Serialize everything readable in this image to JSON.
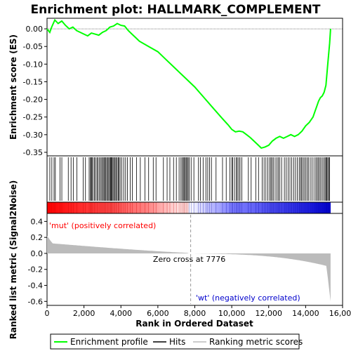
{
  "chart_data": {
    "type": "line",
    "title": "Enrichment plot: HALLMARK_COMPLEMENT",
    "xlabel": "Rank in Ordered Dataset",
    "ylabel_top": "Enrichment score (ES)",
    "ylabel_bottom": "Ranked list metric (Signal2Noise)",
    "xlim": [
      0,
      16000
    ],
    "x_ticks": [
      0,
      2000,
      4000,
      6000,
      8000,
      10000,
      12000,
      14000,
      16000
    ],
    "x_tick_labels": [
      "0",
      "2,000",
      "4,000",
      "6,000",
      "8,000",
      "10,000",
      "12,000",
      "14,000",
      "16,000"
    ],
    "es_ylim": [
      -0.36,
      0.03
    ],
    "es_ticks": [
      0.0,
      -0.05,
      -0.1,
      -0.15,
      -0.2,
      -0.25,
      -0.3,
      -0.35
    ],
    "es_tick_labels": [
      "0.00",
      "-0.05",
      "-0.10",
      "-0.15",
      "-0.20",
      "-0.25",
      "-0.30",
      "-0.35"
    ],
    "metric_ylim": [
      -0.65,
      0.5
    ],
    "metric_ticks": [
      0.4,
      0.2,
      0.0,
      -0.2,
      -0.4,
      -0.6
    ],
    "metric_tick_labels": [
      "0.4",
      "0.2",
      "0.0",
      "-0.2",
      "-0.4",
      "-0.6"
    ],
    "n_genes": 15350,
    "zero_cross": 7776,
    "zero_cross_label": "Zero cross at 7776",
    "pos_label": "'mut' (positively correlated)",
    "neg_label": "'wt' (negatively correlated)",
    "series": [
      {
        "name": "Enrichment profile",
        "color": "#00ff00",
        "x": [
          0,
          150,
          250,
          420,
          600,
          800,
          1000,
          1200,
          1400,
          1600,
          1800,
          2000,
          2200,
          2400,
          2600,
          2800,
          3000,
          3200,
          3400,
          3600,
          3800,
          4000,
          4200,
          4400,
          4600,
          4800,
          5000,
          5500,
          6000,
          6500,
          7000,
          7500,
          8000,
          8500,
          9000,
          9500,
          9800,
          10000,
          10200,
          10400,
          10600,
          10800,
          11000,
          11200,
          11400,
          11600,
          11800,
          12000,
          12200,
          12400,
          12600,
          12800,
          13000,
          13200,
          13400,
          13600,
          13800,
          14000,
          14200,
          14400,
          14500,
          14600,
          14700,
          14800,
          14900,
          15000,
          15100,
          15200,
          15300,
          15350
        ],
        "y": [
          0.0,
          -0.01,
          0.005,
          0.025,
          0.015,
          0.022,
          0.01,
          0.0,
          0.005,
          -0.005,
          -0.01,
          -0.015,
          -0.02,
          -0.012,
          -0.015,
          -0.018,
          -0.01,
          -0.005,
          0.005,
          0.008,
          0.015,
          0.01,
          0.008,
          -0.005,
          -0.015,
          -0.025,
          -0.035,
          -0.05,
          -0.065,
          -0.09,
          -0.115,
          -0.14,
          -0.165,
          -0.195,
          -0.225,
          -0.255,
          -0.272,
          -0.285,
          -0.292,
          -0.29,
          -0.292,
          -0.3,
          -0.308,
          -0.318,
          -0.328,
          -0.338,
          -0.335,
          -0.33,
          -0.318,
          -0.31,
          -0.305,
          -0.31,
          -0.305,
          -0.3,
          -0.305,
          -0.3,
          -0.29,
          -0.275,
          -0.265,
          -0.25,
          -0.235,
          -0.22,
          -0.205,
          -0.195,
          -0.19,
          -0.18,
          -0.16,
          -0.1,
          -0.04,
          0.0
        ]
      }
    ],
    "legend": [
      {
        "label": "Enrichment profile",
        "color": "#00ff00"
      },
      {
        "label": "Hits",
        "color": "#000000"
      },
      {
        "label": "Ranking metric scores",
        "color": "#bbbbbb"
      }
    ],
    "hit_positions": [
      150,
      260,
      380,
      450,
      700,
      800,
      1150,
      1300,
      1420,
      1620,
      1960,
      2080,
      2280,
      2350,
      2390,
      2430,
      2480,
      2560,
      2620,
      2700,
      2760,
      2830,
      2900,
      2960,
      3020,
      3080,
      3120,
      3180,
      3230,
      3290,
      3340,
      3390,
      3440,
      3480,
      3520,
      3570,
      3620,
      3680,
      3730,
      3790,
      3850,
      3900,
      3960,
      4050,
      4150,
      4250,
      4350,
      4500,
      4620,
      4850,
      5050,
      5300,
      5500,
      5750,
      5900,
      6300,
      6500,
      6650,
      6850,
      7000,
      7150,
      7250,
      7320,
      7380,
      7420,
      7480,
      7530,
      7580,
      7640,
      7700,
      7800,
      7950,
      8200,
      8300,
      8450,
      8600,
      8700,
      8800,
      8900,
      9150,
      9500,
      9700,
      9900,
      10000,
      10050,
      10150,
      10250,
      10300,
      10380,
      10450,
      10550,
      10900,
      11050,
      11300,
      11450,
      11650,
      11750,
      11850,
      11950,
      12050,
      12120,
      12180,
      12250,
      12350,
      12450,
      12520,
      12600,
      12700,
      12850,
      12950,
      13050,
      13150,
      13250,
      13350,
      13450,
      13550,
      13650,
      13720,
      13780,
      13850,
      13920,
      14000,
      14080,
      14150,
      14250,
      14350,
      14450,
      14550,
      14620,
      14680,
      14750,
      14820,
      14900,
      14980,
      15050,
      15100,
      15150,
      15200,
      15250,
      15300
    ]
  }
}
